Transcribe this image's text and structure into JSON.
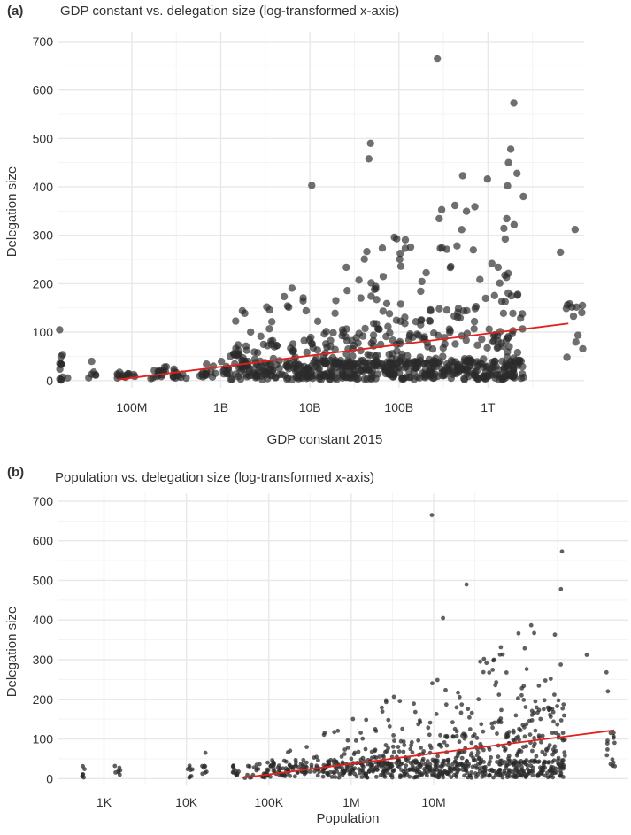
{
  "colors": {
    "point": "#2b2b2b",
    "fit_line": "#e3211c",
    "grid_major": "#e8e8e8",
    "grid_minor": "#f3f3f3"
  },
  "chart_data": [
    {
      "panel": "(a)",
      "type": "scatter",
      "title": "GDP constant vs. delegation size (log-transformed x-axis)",
      "xlabel": "GDP constant 2015",
      "ylabel": "Delegation size",
      "x_scale": "log10",
      "xlim": [
        15000000,
        12000000000000
      ],
      "ylim": [
        -15,
        720
      ],
      "x_ticks": [
        {
          "value": 100000000,
          "label": "100M"
        },
        {
          "value": 1000000000,
          "label": "1B"
        },
        {
          "value": 10000000000,
          "label": "10B"
        },
        {
          "value": 100000000000,
          "label": "100B"
        },
        {
          "value": 1000000000000,
          "label": "1T"
        }
      ],
      "y_ticks": [
        0,
        100,
        200,
        300,
        400,
        500,
        600,
        700
      ],
      "grid": true,
      "trend_line": {
        "x": [
          70000000,
          8000000000000
        ],
        "y": [
          2,
          118
        ]
      },
      "highlighted_points": [
        {
          "x": 48000000000,
          "y": 490
        },
        {
          "x": 46000000000,
          "y": 458
        },
        {
          "x": 10500000000,
          "y": 403
        },
        {
          "x": 270000000000,
          "y": 665
        },
        {
          "x": 1950000000000,
          "y": 573
        },
        {
          "x": 1800000000000,
          "y": 478
        },
        {
          "x": 520000000000,
          "y": 423
        },
        {
          "x": 1700000000000,
          "y": 450
        },
        {
          "x": 2500000000000,
          "y": 380
        },
        {
          "x": 9500000000000,
          "y": 312
        },
        {
          "x": 6500000000000,
          "y": 265
        },
        {
          "x": 15500000,
          "y": 105
        }
      ]
    },
    {
      "panel": "(b)",
      "type": "scatter",
      "title": "Population vs. delegation size (log-transformed x-axis)",
      "xlabel": "Population",
      "ylabel": "Delegation size",
      "x_scale": "log10",
      "xlim": [
        280,
        2300000000
      ],
      "ylim": [
        -15,
        720
      ],
      "x_ticks": [
        {
          "value": 1000,
          "label": "1K"
        },
        {
          "value": 10000,
          "label": "10K"
        },
        {
          "value": 100000,
          "label": "100K"
        },
        {
          "value": 1000000,
          "label": "1M"
        },
        {
          "value": 10000000,
          "label": "10M"
        }
      ],
      "y_ticks": [
        0,
        100,
        200,
        300,
        400,
        500,
        600,
        700
      ],
      "grid": true,
      "trend_line": {
        "x": [
          48000,
          1550000000
        ],
        "y": [
          2,
          122
        ]
      },
      "highlighted_points": [
        {
          "x": 9500000,
          "y": 665
        },
        {
          "x": 360000000,
          "y": 573
        },
        {
          "x": 350000000,
          "y": 478
        },
        {
          "x": 25000000,
          "y": 490
        },
        {
          "x": 13000000,
          "y": 405
        },
        {
          "x": 2000000,
          "y": 120
        },
        {
          "x": 550,
          "y": 10
        },
        {
          "x": 1500,
          "y": 20
        },
        {
          "x": 17000,
          "y": 65
        },
        {
          "x": 1250000000,
          "y": 268
        },
        {
          "x": 1300000000,
          "y": 220
        },
        {
          "x": 720000000,
          "y": 312
        }
      ]
    }
  ]
}
